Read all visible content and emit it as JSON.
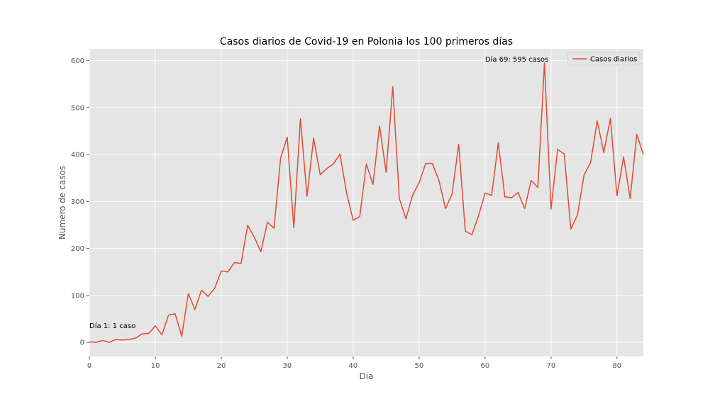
{
  "chart_data": {
    "type": "line",
    "title": "Casos diarios de Covid-19 en Polonia los 100 primeros días",
    "xlabel": "Dia",
    "ylabel": "Numero de casos",
    "xlim": [
      0,
      84
    ],
    "ylim": [
      -30,
      625
    ],
    "xticks": [
      0,
      10,
      20,
      30,
      40,
      50,
      60,
      70,
      80
    ],
    "yticks": [
      0,
      100,
      200,
      300,
      400,
      500,
      600
    ],
    "grid": true,
    "legend_position": "top-right",
    "colors": {
      "line": "#E24A33",
      "background": "#E5E5E5",
      "grid": "#FFFFFF"
    },
    "series": [
      {
        "name": "Casos diarios",
        "x": [
          0,
          1,
          2,
          3,
          4,
          5,
          6,
          7,
          8,
          9,
          10,
          11,
          12,
          13,
          14,
          15,
          16,
          17,
          18,
          19,
          20,
          21,
          22,
          23,
          24,
          25,
          26,
          27,
          28,
          29,
          30,
          31,
          32,
          33,
          34,
          35,
          36,
          37,
          38,
          39,
          40,
          41,
          42,
          43,
          44,
          45,
          46,
          47,
          48,
          49,
          50,
          51,
          52,
          53,
          54,
          55,
          56,
          57,
          58,
          59,
          60,
          61,
          62,
          63,
          64,
          65,
          66,
          67,
          68,
          69,
          70,
          71,
          72,
          73,
          74,
          75,
          76,
          77,
          78,
          79,
          80,
          81,
          82,
          83,
          84
        ],
        "values": [
          1,
          0,
          4,
          0,
          6,
          5,
          6,
          9,
          18,
          19,
          35,
          16,
          58,
          61,
          13,
          104,
          70,
          111,
          98,
          115,
          152,
          150,
          170,
          168,
          249,
          224,
          193,
          256,
          243,
          393,
          437,
          244,
          476,
          311,
          435,
          357,
          370,
          380,
          401,
          318,
          260,
          268,
          380,
          336,
          461,
          362,
          545,
          306,
          263,
          313,
          340,
          381,
          381,
          345,
          285,
          316,
          422,
          237,
          229,
          269,
          318,
          313,
          425,
          310,
          308,
          319,
          285,
          345,
          330,
          595,
          284,
          411,
          401,
          241,
          271,
          356,
          383,
          472,
          404,
          477,
          312,
          395,
          306,
          443,
          400
        ]
      }
    ],
    "annotations": [
      {
        "x": 0,
        "y": 30,
        "text": "Día 1: 1 caso"
      },
      {
        "x": 60,
        "y": 598,
        "text": "Día 69: 595 casos"
      }
    ]
  }
}
